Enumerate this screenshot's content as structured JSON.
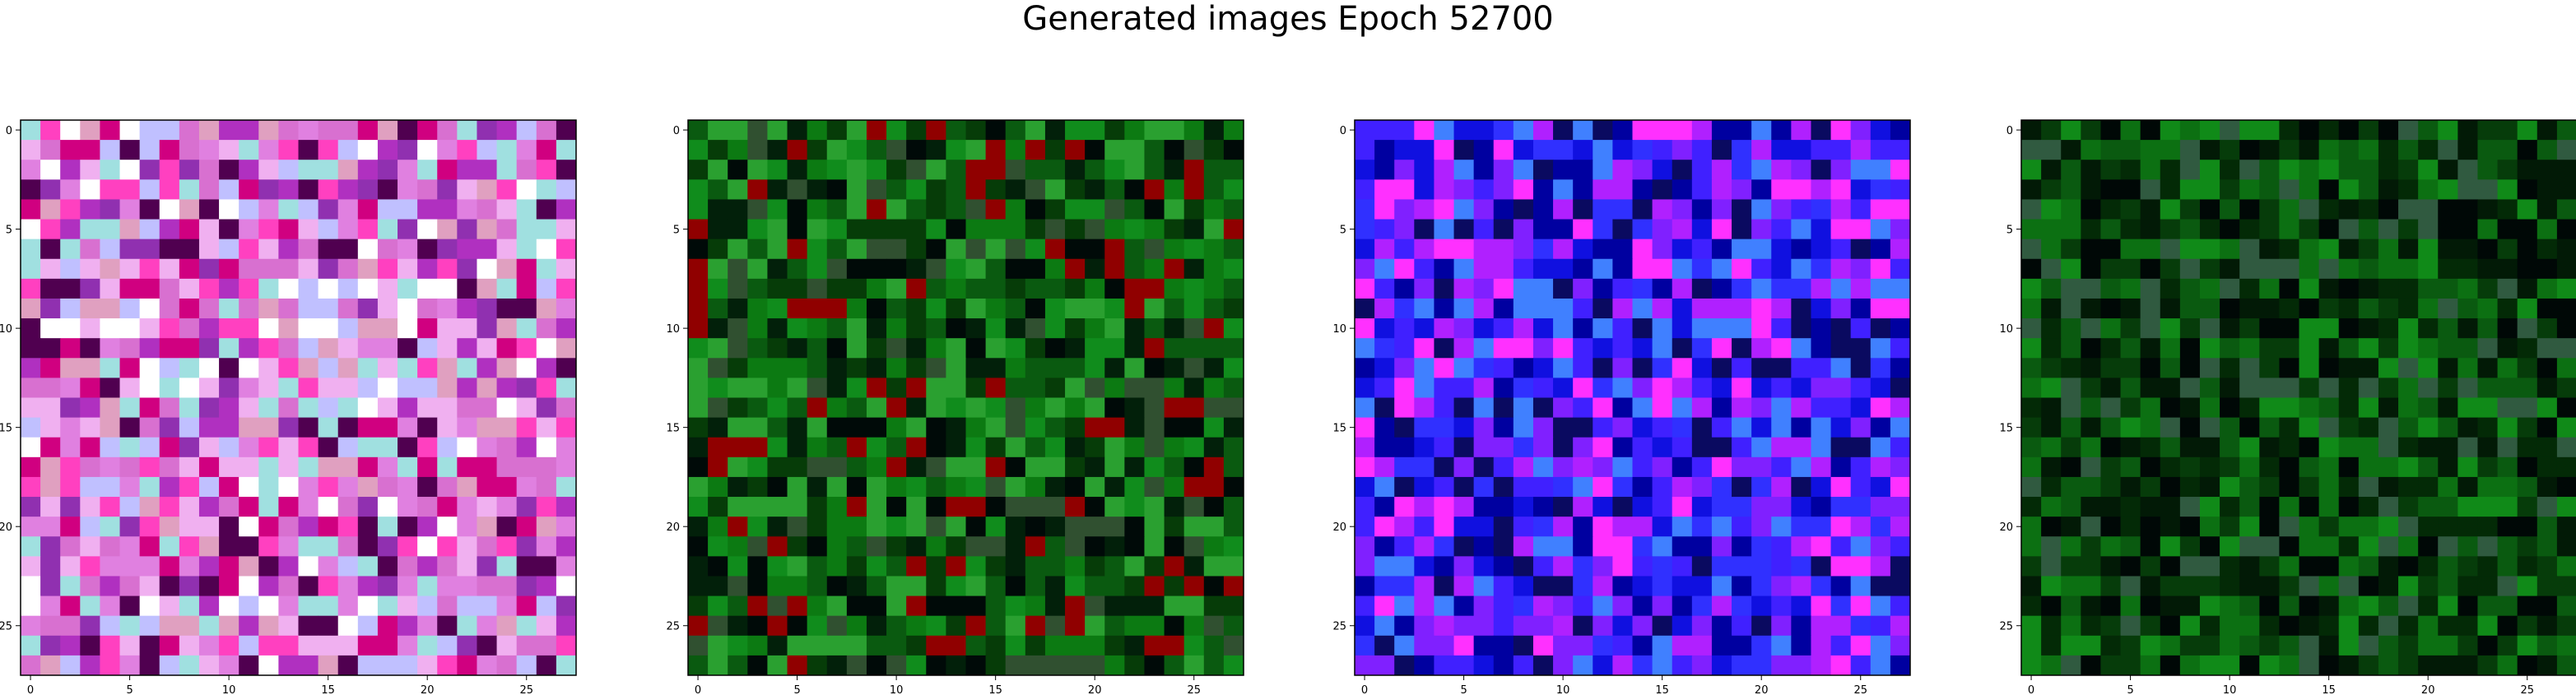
{
  "title": "Generated images Epoch 52700",
  "chart_data": [
    {
      "type": "heatmap",
      "xlim": [
        0,
        27
      ],
      "ylim": [
        27,
        0
      ],
      "xticks": [
        "0",
        "5",
        "10",
        "15",
        "20",
        "25"
      ],
      "yticks": [
        "0",
        "5",
        "10",
        "15",
        "20",
        "25"
      ],
      "base_color": "#c860c8",
      "palette": [
        "#d870d0",
        "#f0b0f0",
        "#b030c0",
        "#ff40c0",
        "#e080e0",
        "#9030b0",
        "#ffffff",
        "#a0e0e0",
        "#d00080",
        "#500050",
        "#c0c0ff",
        "#e0a0c0"
      ]
    },
    {
      "type": "heatmap",
      "xlim": [
        0,
        27
      ],
      "ylim": [
        27,
        0
      ],
      "xticks": [
        "0",
        "5",
        "10",
        "15",
        "20",
        "25"
      ],
      "yticks": [
        "0",
        "5",
        "10",
        "15",
        "20",
        "25"
      ],
      "base_color": "#0a6010",
      "palette": [
        "#0c7a12",
        "#063c08",
        "#02200a",
        "#108c1c",
        "#0a5a10",
        "#000a08",
        "#2aa030",
        "#305030",
        "#900000"
      ]
    },
    {
      "type": "heatmap",
      "xlim": [
        0,
        27
      ],
      "ylim": [
        27,
        0
      ],
      "xticks": [
        "0",
        "5",
        "10",
        "15",
        "20",
        "25"
      ],
      "yticks": [
        "0",
        "5",
        "10",
        "15",
        "20",
        "25"
      ],
      "base_color": "#2010f0",
      "palette": [
        "#1010e0",
        "#4020ff",
        "#8020ff",
        "#0000a0",
        "#b020ff",
        "#0a0a60",
        "#4080ff",
        "#ff30ff",
        "#3030ff"
      ]
    },
    {
      "type": "heatmap",
      "xlim": [
        0,
        27
      ],
      "ylim": [
        27,
        0
      ],
      "xticks": [
        "0",
        "5",
        "10",
        "15",
        "20",
        "25"
      ],
      "yticks": [
        "0",
        "5",
        "10",
        "15",
        "20",
        "25"
      ],
      "base_color": "#064a0c",
      "palette": [
        "#0c7012",
        "#032a06",
        "#021a06",
        "#0a5a10",
        "#108a18",
        "#000806",
        "#305a40",
        "#063c0a"
      ]
    }
  ]
}
